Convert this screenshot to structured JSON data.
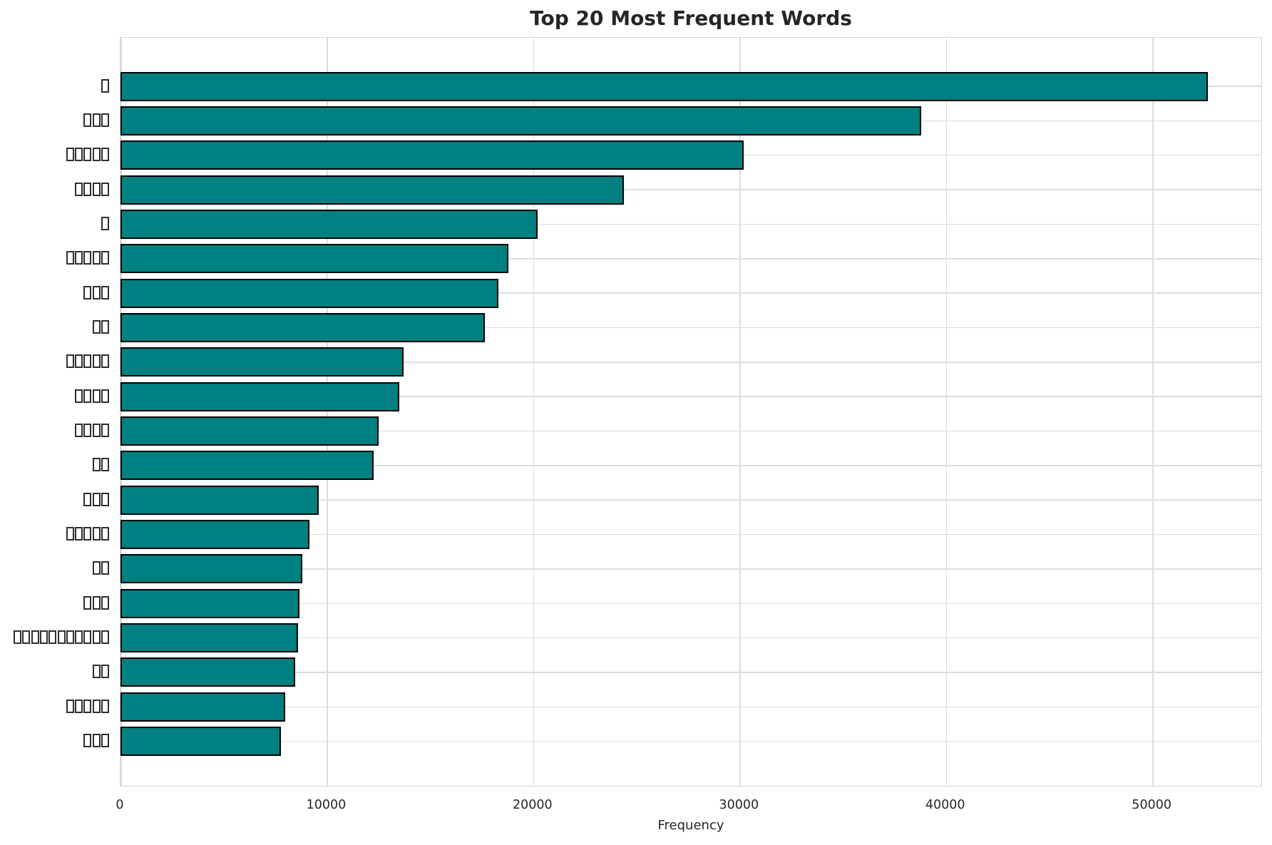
{
  "chart": {
    "title": "Top 20 Most Frequent Words",
    "xlabel": "Frequency",
    "note": "Y-axis category labels are rendered as missing-glyph (tofu) rectangles in the original image"
  },
  "chart_data": {
    "type": "bar",
    "orientation": "horizontal",
    "title": "Top 20 Most Frequent Words",
    "xlabel": "Frequency",
    "ylabel": "",
    "xlim": [
      0,
      55350
    ],
    "x_ticks": [
      0,
      10000,
      20000,
      30000,
      40000,
      50000
    ],
    "grid": true,
    "legend": false,
    "bar_color": "#008080",
    "bar_edge_color": "#000000",
    "categories": [
      "□",
      "□□□",
      "□□□□□",
      "□□□□",
      "□",
      "□□□□□",
      "□□□",
      "□□",
      "□□□□□",
      "□□□□",
      "□□□□",
      "□□",
      "□□□",
      "□□□□□",
      "□□",
      "□□□",
      "□□□□□□□□□□□",
      "□□",
      "□□□□□",
      "□□□"
    ],
    "category_glyph_counts": [
      1,
      3,
      5,
      4,
      1,
      5,
      3,
      2,
      5,
      4,
      4,
      2,
      3,
      5,
      2,
      3,
      11,
      2,
      5,
      3
    ],
    "values": [
      52700,
      38800,
      30200,
      24400,
      20200,
      18800,
      18300,
      17650,
      13700,
      13500,
      12500,
      12250,
      9600,
      9150,
      8800,
      8670,
      8600,
      8460,
      7980,
      7770
    ]
  },
  "layout_colors": {
    "grid_color": "#dcdcdc",
    "spine_color": "#d4d4d4",
    "text_color": "#262626"
  }
}
